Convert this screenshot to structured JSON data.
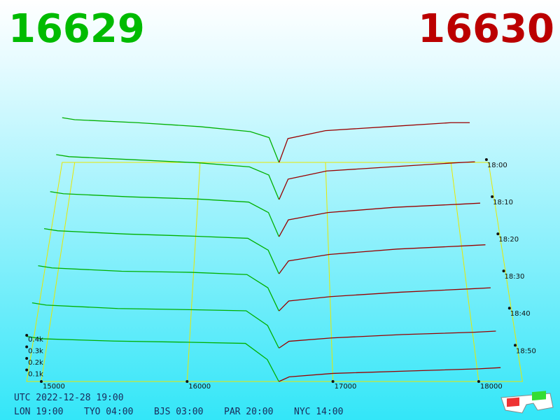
{
  "header": {
    "bid": "16629",
    "ask": "16630"
  },
  "footer": {
    "utc": "UTC 2022-12-28 19:00",
    "cities": [
      "LON 19:00",
      "TYO 04:00",
      "BJS 03:00",
      "PAR 20:00",
      "NYC 14:00"
    ]
  },
  "chart_data": {
    "type": "depth3d",
    "xlim": [
      14900,
      18300
    ],
    "xticks": [
      15000,
      16000,
      17000,
      18000
    ],
    "zticks": [
      {
        "value": 0.1,
        "label": "0.1k"
      },
      {
        "value": 0.2,
        "label": "0.2k"
      },
      {
        "value": 0.3,
        "label": "0.3k"
      },
      {
        "value": 0.4,
        "label": "0.4k"
      }
    ],
    "tlim": [
      0,
      59
    ],
    "tticks": [
      {
        "value": 0,
        "label": "18:00"
      },
      {
        "value": 10,
        "label": "18:10"
      },
      {
        "value": 20,
        "label": "18:20"
      },
      {
        "value": 30,
        "label": "18:30"
      },
      {
        "value": 40,
        "label": "18:40"
      },
      {
        "value": 50,
        "label": "18:50"
      }
    ],
    "floor_color": "#e8e800",
    "bids": {
      "color": "#00b000",
      "prices": [
        14900,
        15000,
        15500,
        16000,
        16400,
        16550,
        16629
      ],
      "snapshots": [
        {
          "time": 0,
          "values": [
            0.45,
            0.43,
            0.4,
            0.36,
            0.31,
            0.25,
            0
          ]
        },
        {
          "time": 10,
          "values": [
            0.44,
            0.42,
            0.39,
            0.36,
            0.32,
            0.24,
            0
          ]
        },
        {
          "time": 20,
          "values": [
            0.43,
            0.41,
            0.38,
            0.36,
            0.33,
            0.23,
            0
          ]
        },
        {
          "time": 30,
          "values": [
            0.42,
            0.4,
            0.37,
            0.35,
            0.33,
            0.22,
            0
          ]
        },
        {
          "time": 40,
          "values": [
            0.41,
            0.39,
            0.36,
            0.35,
            0.33,
            0.21,
            0
          ]
        },
        {
          "time": 50,
          "values": [
            0.4,
            0.38,
            0.35,
            0.34,
            0.33,
            0.2,
            0
          ]
        },
        {
          "time": 59,
          "values": [
            0.39,
            0.37,
            0.35,
            0.34,
            0.33,
            0.19,
            0
          ]
        }
      ]
    },
    "asks": {
      "color": "#990000",
      "prices": [
        16630,
        16700,
        17000,
        17500,
        18000,
        18150
      ],
      "snapshots": [
        {
          "time": 0,
          "values": [
            0,
            0.24,
            0.32,
            0.36,
            0.4,
            0.4
          ]
        },
        {
          "time": 10,
          "values": [
            0,
            0.2,
            0.28,
            0.32,
            0.36,
            0.37
          ]
        },
        {
          "time": 20,
          "values": [
            0,
            0.16,
            0.23,
            0.28,
            0.31,
            0.32
          ]
        },
        {
          "time": 30,
          "values": [
            0,
            0.12,
            0.18,
            0.23,
            0.26,
            0.27
          ]
        },
        {
          "time": 40,
          "values": [
            0,
            0.09,
            0.13,
            0.17,
            0.2,
            0.21
          ]
        },
        {
          "time": 50,
          "values": [
            0,
            0.06,
            0.09,
            0.12,
            0.14,
            0.15
          ]
        },
        {
          "time": 59,
          "values": [
            0,
            0.04,
            0.07,
            0.09,
            0.11,
            0.12
          ]
        }
      ]
    }
  }
}
